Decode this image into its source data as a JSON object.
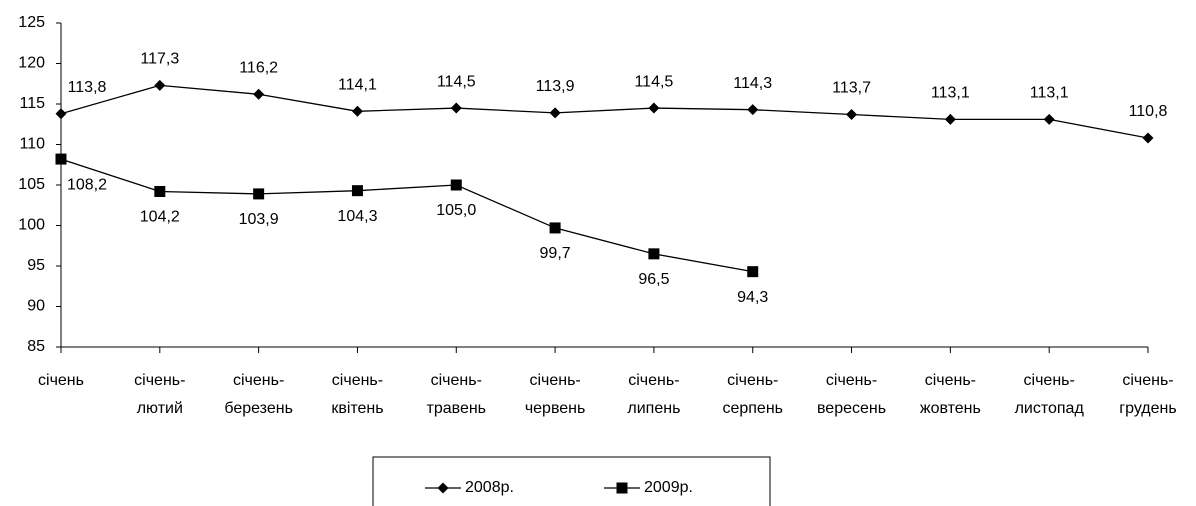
{
  "chart_data": {
    "type": "line",
    "categories": [
      [
        "січень"
      ],
      [
        "січень-",
        "лютий"
      ],
      [
        "січень-",
        "березень"
      ],
      [
        "січень-",
        "квітень"
      ],
      [
        "січень-",
        "травень"
      ],
      [
        "січень-",
        "червень"
      ],
      [
        "січень-",
        "липень"
      ],
      [
        "січень-",
        "серпень"
      ],
      [
        "січень-",
        "вересень"
      ],
      [
        "січень-",
        "жовтень"
      ],
      [
        "січень-",
        "листопад"
      ],
      [
        "січень-",
        "грудень"
      ]
    ],
    "series": [
      {
        "name": "2008р.",
        "color": "#000000",
        "marker": "diamond",
        "values": [
          113.8,
          117.3,
          116.2,
          114.1,
          114.5,
          113.9,
          114.5,
          114.3,
          113.7,
          113.1,
          113.1,
          110.8
        ],
        "value_labels": [
          "113,8",
          "117,3",
          "116,2",
          "114,1",
          "114,5",
          "113,9",
          "114,5",
          "114,3",
          "113,7",
          "113,1",
          "113,1",
          "110,8"
        ]
      },
      {
        "name": "2009р.",
        "color": "#000000",
        "marker": "square",
        "values": [
          108.2,
          104.2,
          103.9,
          104.3,
          105.0,
          99.7,
          96.5,
          94.3,
          null,
          null,
          null,
          null
        ],
        "value_labels": [
          "108,2",
          "104,2",
          "103,9",
          "104,3",
          "105,0",
          "99,7",
          "96,5",
          "94,3",
          null,
          null,
          null,
          null
        ]
      }
    ],
    "ylim": [
      85,
      125
    ],
    "yticks": [
      85,
      90,
      95,
      100,
      105,
      110,
      115,
      120,
      125
    ],
    "grid": false,
    "legend": "bottom"
  }
}
